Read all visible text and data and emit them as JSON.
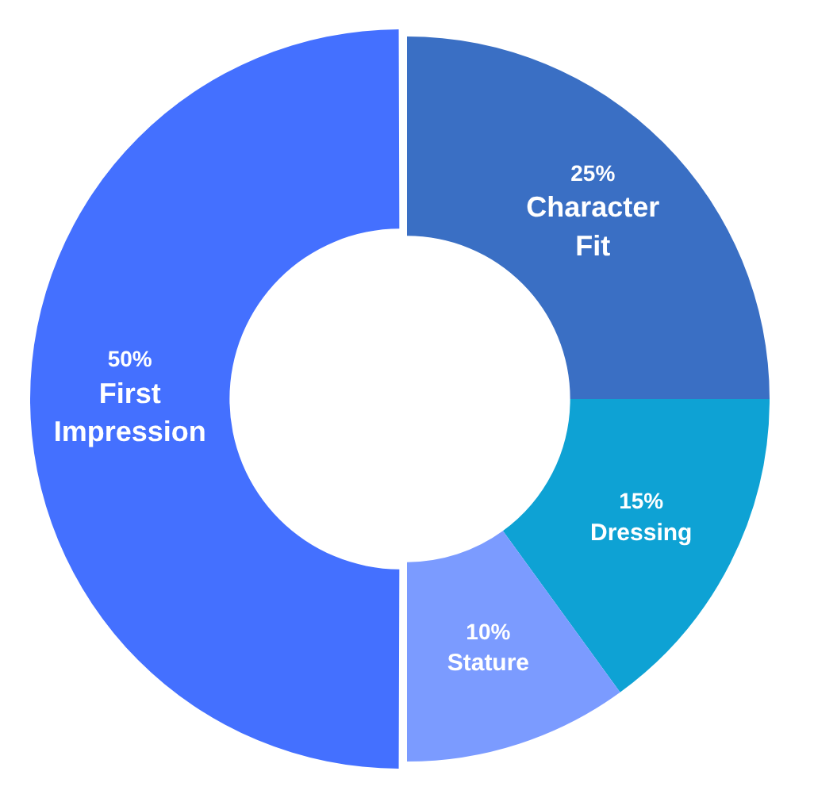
{
  "chart_data": {
    "type": "donut",
    "categories": [
      "Character Fit",
      "Dressing",
      "Stature",
      "First Impression"
    ],
    "values": [
      25,
      15,
      10,
      50
    ],
    "colors": [
      "#3a6fc4",
      "#0ea2d4",
      "#7b9bff",
      "#4470ff"
    ],
    "value_labels": [
      "25%",
      "15%",
      "10%",
      "50%"
    ],
    "legend": false
  }
}
